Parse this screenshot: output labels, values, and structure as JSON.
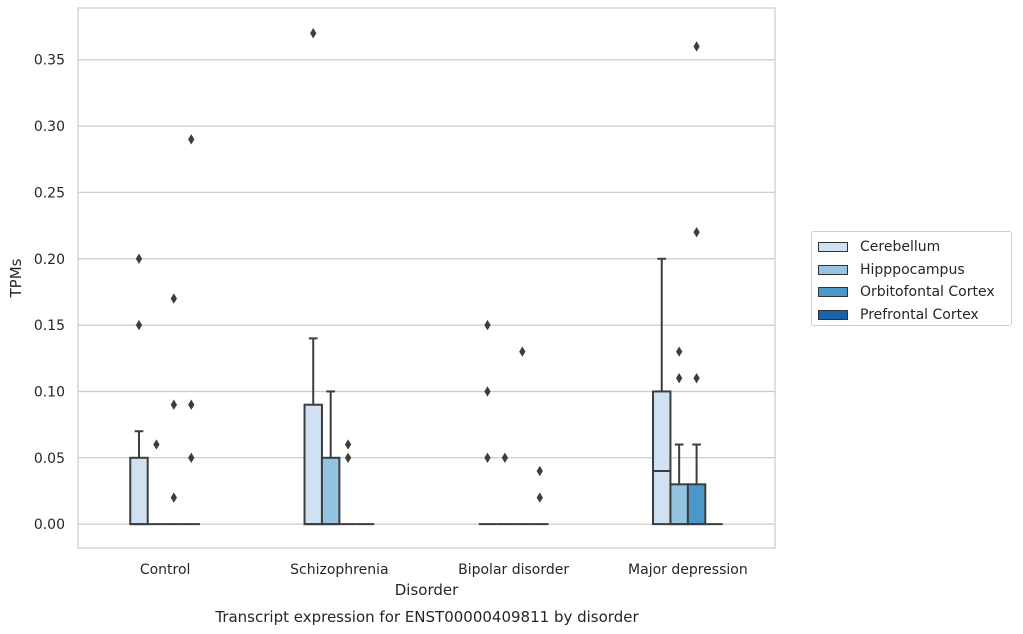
{
  "chart_data": {
    "type": "box",
    "title": "",
    "caption": "Transcript expression for ENST00000409811 by disorder",
    "xlabel": "Disorder",
    "ylabel": "TPMs",
    "ylim": [
      -0.018,
      0.389
    ],
    "y_ticks": [
      "0.00",
      "0.05",
      "0.10",
      "0.15",
      "0.20",
      "0.25",
      "0.30",
      "0.35"
    ],
    "grid": true,
    "legend_position": "right",
    "categories": [
      "Control",
      "Schizophrenia",
      "Bipolar disorder",
      "Major depression"
    ],
    "series": [
      {
        "name": "Cerebellum",
        "color": "#d0e1f2",
        "boxes": [
          {
            "q1": 0.0,
            "median": 0.0,
            "q3": 0.05,
            "whisker_low": 0.0,
            "whisker_high": 0.07,
            "outliers": [
              0.15,
              0.2
            ]
          },
          {
            "q1": 0.0,
            "median": 0.0,
            "q3": 0.09,
            "whisker_low": 0.0,
            "whisker_high": 0.14,
            "outliers": [
              0.37
            ]
          },
          {
            "q1": 0.0,
            "median": 0.0,
            "q3": 0.0,
            "whisker_low": 0.0,
            "whisker_high": 0.0,
            "outliers": [
              0.05,
              0.1,
              0.15
            ]
          },
          {
            "q1": 0.0,
            "median": 0.04,
            "q3": 0.1,
            "whisker_low": 0.0,
            "whisker_high": 0.2,
            "outliers": []
          }
        ]
      },
      {
        "name": "Hipppocampus",
        "color": "#94c4df",
        "boxes": [
          {
            "q1": 0.0,
            "median": 0.0,
            "q3": 0.0,
            "whisker_low": 0.0,
            "whisker_high": 0.0,
            "outliers": [
              0.06
            ]
          },
          {
            "q1": 0.0,
            "median": 0.0,
            "q3": 0.05,
            "whisker_low": 0.0,
            "whisker_high": 0.1,
            "outliers": []
          },
          {
            "q1": 0.0,
            "median": 0.0,
            "q3": 0.0,
            "whisker_low": 0.0,
            "whisker_high": 0.0,
            "outliers": [
              0.05
            ]
          },
          {
            "q1": 0.0,
            "median": 0.0,
            "q3": 0.03,
            "whisker_low": 0.0,
            "whisker_high": 0.06,
            "outliers": [
              0.11,
              0.13
            ]
          }
        ]
      },
      {
        "name": "Orbitofontal Cortex",
        "color": "#4a98c9",
        "boxes": [
          {
            "q1": 0.0,
            "median": 0.0,
            "q3": 0.0,
            "whisker_low": 0.0,
            "whisker_high": 0.0,
            "outliers": [
              0.02,
              0.09,
              0.17
            ]
          },
          {
            "q1": 0.0,
            "median": 0.0,
            "q3": 0.0,
            "whisker_low": 0.0,
            "whisker_high": 0.0,
            "outliers": [
              0.05,
              0.06
            ]
          },
          {
            "q1": 0.0,
            "median": 0.0,
            "q3": 0.0,
            "whisker_low": 0.0,
            "whisker_high": 0.0,
            "outliers": [
              0.13
            ]
          },
          {
            "q1": 0.0,
            "median": 0.0,
            "q3": 0.03,
            "whisker_low": 0.0,
            "whisker_high": 0.06,
            "outliers": [
              0.11,
              0.22,
              0.36
            ]
          }
        ]
      },
      {
        "name": "Prefrontal Cortex",
        "color": "#1764ab",
        "boxes": [
          {
            "q1": 0.0,
            "median": 0.0,
            "q3": 0.0,
            "whisker_low": 0.0,
            "whisker_high": 0.0,
            "outliers": [
              0.05,
              0.09,
              0.29
            ]
          },
          {
            "q1": 0.0,
            "median": 0.0,
            "q3": 0.0,
            "whisker_low": 0.0,
            "whisker_high": 0.0,
            "outliers": []
          },
          {
            "q1": 0.0,
            "median": 0.0,
            "q3": 0.0,
            "whisker_low": 0.0,
            "whisker_high": 0.0,
            "outliers": [
              0.02,
              0.04
            ]
          },
          {
            "q1": 0.0,
            "median": 0.0,
            "q3": 0.0,
            "whisker_low": 0.0,
            "whisker_high": 0.0,
            "outliers": []
          }
        ]
      }
    ]
  }
}
